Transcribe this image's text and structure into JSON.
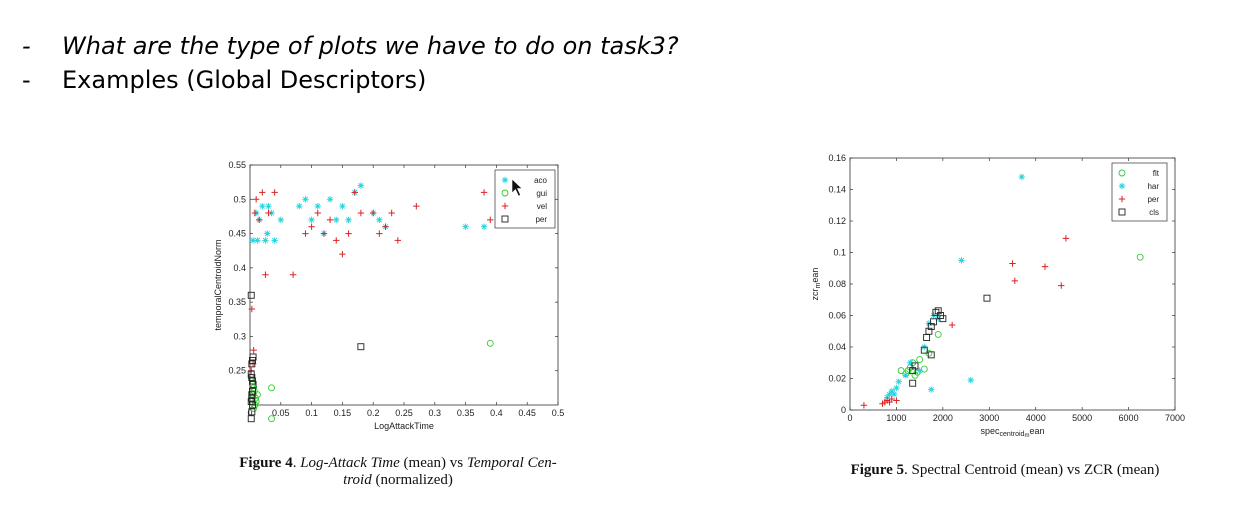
{
  "slide": {
    "bullets": [
      {
        "dash": "-",
        "text": "What are the type of plots we have to do on task3?"
      },
      {
        "dash": "-",
        "text": "Examples (Global Descriptors)"
      }
    ]
  },
  "figures": [
    {
      "caption_label": "Figure 4",
      "caption_parts": [
        {
          "text": ". ",
          "style": "normal"
        },
        {
          "text": "Log-Attack Time",
          "style": "italic"
        },
        {
          "text": " (mean) vs ",
          "style": "normal"
        },
        {
          "text": "Temporal Cen-",
          "style": "italic"
        }
      ],
      "caption_line2": [
        {
          "text": "troid",
          "style": "italic"
        },
        {
          "text": " (normalized)",
          "style": "normal"
        }
      ]
    },
    {
      "caption_label": "Figure 5",
      "caption_parts": [
        {
          "text": ". Spectral Centroid (mean) vs ZCR (mean)",
          "style": "normal"
        }
      ],
      "caption_line2": []
    }
  ],
  "chart_data": [
    {
      "type": "scatter",
      "xlabel": "LogAttackTime",
      "ylabel": "temporalCentroidNorm",
      "xlim": [
        0,
        0.5
      ],
      "ylim": [
        0.2,
        0.55
      ],
      "xticks": [
        0,
        0.05,
        0.1,
        0.15,
        0.2,
        0.25,
        0.3,
        0.35,
        0.4,
        0.45,
        0.5
      ],
      "xtick_labels": [
        "0",
        "0.05",
        "0.1",
        "0.15",
        "0.2",
        "0.25",
        "0.3",
        "0.35",
        "0.4",
        "0.45",
        "0.5"
      ],
      "yticks": [
        0.25,
        0.3,
        0.35,
        0.4,
        0.45,
        0.5,
        0.55
      ],
      "ytick_labels": [
        "0.25",
        "0.3",
        "0.35",
        "0.4",
        "0.45",
        "0.5",
        "0.55"
      ],
      "legend_position": "top-right",
      "series": [
        {
          "name": "aco",
          "marker": "star",
          "color": "#22d3e0",
          "x": [
            0.005,
            0.01,
            0.015,
            0.02,
            0.025,
            0.03,
            0.04,
            0.05,
            0.08,
            0.09,
            0.1,
            0.11,
            0.12,
            0.13,
            0.14,
            0.15,
            0.16,
            0.17,
            0.18,
            0.2,
            0.21,
            0.22,
            0.35,
            0.38,
            0.012,
            0.028,
            0.035
          ],
          "y": [
            0.44,
            0.48,
            0.47,
            0.49,
            0.44,
            0.49,
            0.44,
            0.47,
            0.49,
            0.5,
            0.47,
            0.49,
            0.45,
            0.5,
            0.47,
            0.49,
            0.47,
            0.51,
            0.52,
            0.48,
            0.47,
            0.46,
            0.46,
            0.46,
            0.44,
            0.45,
            0.48
          ]
        },
        {
          "name": "gui",
          "marker": "circle",
          "color": "#33cc33",
          "x": [
            0.003,
            0.005,
            0.007,
            0.008,
            0.01,
            0.004,
            0.006,
            0.009,
            0.002,
            0.012,
            0.006,
            0.008,
            0.035,
            0.035,
            0.39
          ],
          "y": [
            0.21,
            0.215,
            0.22,
            0.2,
            0.205,
            0.23,
            0.225,
            0.21,
            0.24,
            0.215,
            0.195,
            0.2,
            0.225,
            0.18,
            0.29
          ]
        },
        {
          "name": "vel",
          "marker": "plus",
          "color": "#dd2222",
          "x": [
            0.003,
            0.006,
            0.01,
            0.015,
            0.02,
            0.025,
            0.03,
            0.04,
            0.07,
            0.09,
            0.1,
            0.11,
            0.12,
            0.13,
            0.14,
            0.15,
            0.16,
            0.17,
            0.18,
            0.2,
            0.21,
            0.22,
            0.23,
            0.24,
            0.27,
            0.38,
            0.39,
            0.002,
            0.008,
            0.005
          ],
          "y": [
            0.34,
            0.28,
            0.5,
            0.47,
            0.51,
            0.39,
            0.48,
            0.51,
            0.39,
            0.45,
            0.46,
            0.48,
            0.45,
            0.47,
            0.44,
            0.42,
            0.45,
            0.51,
            0.48,
            0.48,
            0.45,
            0.46,
            0.48,
            0.44,
            0.49,
            0.51,
            0.47,
            0.25,
            0.48,
            0.26
          ]
        },
        {
          "name": "per",
          "marker": "square",
          "color": "#222222",
          "x": [
            0.002,
            0.003,
            0.004,
            0.005,
            0.003,
            0.002,
            0.003,
            0.004,
            0.005,
            0.002,
            0.003,
            0.004,
            0.003,
            0.004,
            0.002,
            0.18
          ],
          "y": [
            0.205,
            0.21,
            0.22,
            0.23,
            0.24,
            0.245,
            0.26,
            0.265,
            0.27,
            0.36,
            0.19,
            0.2,
            0.215,
            0.235,
            0.18,
            0.285
          ]
        }
      ]
    },
    {
      "type": "scatter",
      "xlabel": "spec_centroid_mean",
      "xlabel_main": "spec",
      "xlabel_sub": "centroid",
      "xlabel_sub2": "m",
      "xlabel_tail": "ean",
      "ylabel": "zcr_mean",
      "ylabel_main": "zcr",
      "ylabel_sub": "m",
      "ylabel_tail": "ean",
      "xlim": [
        0,
        7000
      ],
      "ylim": [
        0,
        0.16
      ],
      "xticks": [
        0,
        1000,
        2000,
        3000,
        4000,
        5000,
        6000,
        7000
      ],
      "xtick_labels": [
        "0",
        "1000",
        "2000",
        "3000",
        "4000",
        "5000",
        "6000",
        "7000"
      ],
      "yticks": [
        0,
        0.02,
        0.04,
        0.06,
        0.08,
        0.1,
        0.12,
        0.14,
        0.16
      ],
      "ytick_labels": [
        "0",
        "0.02",
        "0.04",
        "0.06",
        "0.08",
        "0.1",
        "0.12",
        "0.14",
        "0.16"
      ],
      "legend_position": "top-right",
      "series": [
        {
          "name": "flt",
          "marker": "circle",
          "color": "#33cc33",
          "x": [
            1100,
            1200,
            1300,
            1400,
            1500,
            1350,
            1250,
            1900,
            1700,
            1450,
            6250,
            1600
          ],
          "y": [
            0.025,
            0.023,
            0.027,
            0.022,
            0.032,
            0.03,
            0.025,
            0.048,
            0.036,
            0.024,
            0.097,
            0.026
          ]
        },
        {
          "name": "har",
          "marker": "star",
          "color": "#22d3e0",
          "x": [
            800,
            850,
            900,
            950,
            1000,
            1050,
            1200,
            1300,
            1500,
            1600,
            1700,
            1800,
            1900,
            2400,
            2600,
            3700,
            1750
          ],
          "y": [
            0.008,
            0.01,
            0.012,
            0.01,
            0.014,
            0.018,
            0.022,
            0.03,
            0.025,
            0.04,
            0.055,
            0.06,
            0.058,
            0.095,
            0.019,
            0.148,
            0.013
          ]
        },
        {
          "name": "per",
          "marker": "plus",
          "color": "#dd2222",
          "x": [
            300,
            700,
            750,
            800,
            900,
            1000,
            2200,
            3500,
            3550,
            4200,
            4550,
            4650,
            850
          ],
          "y": [
            0.003,
            0.004,
            0.005,
            0.006,
            0.007,
            0.006,
            0.054,
            0.093,
            0.082,
            0.091,
            0.079,
            0.109,
            0.005
          ]
        },
        {
          "name": "cls",
          "marker": "square",
          "color": "#222222",
          "x": [
            1350,
            1400,
            1600,
            1650,
            1700,
            1750,
            1800,
            1850,
            1900,
            1950,
            2000,
            2950,
            1350,
            1750
          ],
          "y": [
            0.017,
            0.028,
            0.038,
            0.046,
            0.05,
            0.053,
            0.056,
            0.062,
            0.063,
            0.06,
            0.058,
            0.071,
            0.025,
            0.035
          ]
        }
      ]
    }
  ]
}
